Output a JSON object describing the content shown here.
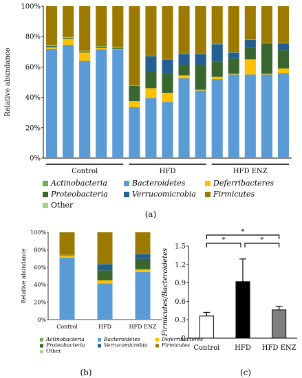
{
  "chart_data": [
    {
      "panel": "(a)",
      "type": "bar",
      "stacked": true,
      "ylabel": "Relative abundance",
      "ylim": [
        0,
        100
      ],
      "yticks": [
        "0%",
        "20%",
        "40%",
        "60%",
        "80%",
        "100%"
      ],
      "groups": [
        "Control",
        "HFD",
        "HFD ENZ"
      ],
      "samples_per_group": [
        5,
        5,
        5
      ],
      "series": [
        {
          "name": "Bacteroidetes",
          "color": "#5b9bd5",
          "values": [
            72,
            74.5,
            64,
            71.5,
            71.5,
            33.5,
            39.5,
            37,
            52.5,
            44.5,
            52,
            55,
            55,
            55,
            56
          ]
        },
        {
          "name": "Deferribacteres",
          "color": "#ffc000",
          "values": [
            1,
            4,
            5.5,
            1,
            0.5,
            4,
            6.5,
            6,
            2,
            0.5,
            1.5,
            0.5,
            10,
            0.5,
            3
          ]
        },
        {
          "name": "Proteobacteria",
          "color": "#38662e",
          "values": [
            0.5,
            0.5,
            0.5,
            0.5,
            0.5,
            10,
            11,
            13,
            7,
            16.5,
            10,
            10,
            7.5,
            20,
            12
          ]
        },
        {
          "name": "Verrucomicrobia",
          "color": "#235f90",
          "values": [
            0.3,
            0.3,
            0.3,
            0.3,
            0.3,
            0,
            10,
            9,
            7,
            7,
            11.5,
            4,
            5.5,
            0,
            4.5
          ]
        },
        {
          "name": "Actinobacteria",
          "color": "#70ad47",
          "values": [
            0.3,
            0.2,
            0.2,
            0.2,
            0.2,
            0.1,
            0.1,
            0.1,
            0.1,
            0.1,
            0.1,
            0.1,
            0.1,
            0.1,
            0.1
          ]
        },
        {
          "name": "Other",
          "color": "#a9d18e",
          "values": [
            0.2,
            0.2,
            0.2,
            0.2,
            0.2,
            0.1,
            0.1,
            0.1,
            0.1,
            0.1,
            0.1,
            0.1,
            0.1,
            0.1,
            0.1
          ]
        },
        {
          "name": "Firmicutes",
          "color": "#9c7a00",
          "values": [
            25.7,
            20.3,
            29.3,
            26.3,
            26.8,
            52.3,
            32.8,
            34.8,
            31.3,
            31.3,
            24.8,
            30.3,
            21.8,
            24.3,
            24.3
          ]
        }
      ],
      "legend": [
        "Actinobacteria",
        "Bacteroidetes",
        "Deferribacteres",
        "Proteobacteria",
        "Verrucomicrobia",
        "Firmicutes",
        "Other"
      ]
    },
    {
      "panel": "(b)",
      "type": "bar",
      "stacked": true,
      "ylabel": "Relative abundance",
      "ylim": [
        0,
        100
      ],
      "yticks": [
        "0%",
        "20%",
        "40%",
        "60%",
        "80%",
        "100%"
      ],
      "categories": [
        "Control",
        "HFD",
        "HFD ENZ"
      ],
      "series": [
        {
          "name": "Bacteroidetes",
          "color": "#5b9bd5",
          "values": [
            71,
            41.5,
            54.5
          ]
        },
        {
          "name": "Deferribacteres",
          "color": "#ffc000",
          "values": [
            2,
            3.5,
            3
          ]
        },
        {
          "name": "Proteobacteria",
          "color": "#38662e",
          "values": [
            0.5,
            11.5,
            12
          ]
        },
        {
          "name": "Verrucomicrobia",
          "color": "#235f90",
          "values": [
            0.3,
            7,
            5.5
          ]
        },
        {
          "name": "Actinobacteria",
          "color": "#70ad47",
          "values": [
            0.2,
            0.1,
            0.1
          ]
        },
        {
          "name": "Other",
          "color": "#a9d18e",
          "values": [
            0.2,
            0.1,
            0.1
          ]
        },
        {
          "name": "Firmicutes",
          "color": "#9c7a00",
          "values": [
            25.8,
            36.3,
            24.8
          ]
        }
      ],
      "legend": [
        "Actinobacteria",
        "Bacteroidetes",
        "Deferribacteres",
        "Proteobacteria",
        "Verrucomicrobia",
        "Firmicutes",
        "Other"
      ]
    },
    {
      "panel": "(c)",
      "type": "bar",
      "ylabel": "Firmicutes/Bacteroidetes",
      "ylim": [
        0,
        1.5
      ],
      "yticks": [
        "0",
        "0.3",
        "0.6",
        "0.9",
        "1.2",
        "1.5"
      ],
      "categories": [
        "Control",
        "HFD",
        "HFD ENZ"
      ],
      "values": [
        0.36,
        0.92,
        0.46
      ],
      "errors": [
        0.06,
        0.37,
        0.06
      ],
      "colors": [
        "#ffffff",
        "#000000",
        "#808080"
      ],
      "significance": [
        {
          "from": "Control",
          "to": "HFD",
          "label": "*"
        },
        {
          "from": "HFD",
          "to": "HFD ENZ",
          "label": "*"
        },
        {
          "from": "Control",
          "to": "HFD ENZ",
          "label": "*"
        }
      ]
    }
  ],
  "labels": {
    "a": "(a)",
    "b": "(b)",
    "c": "(c)"
  }
}
